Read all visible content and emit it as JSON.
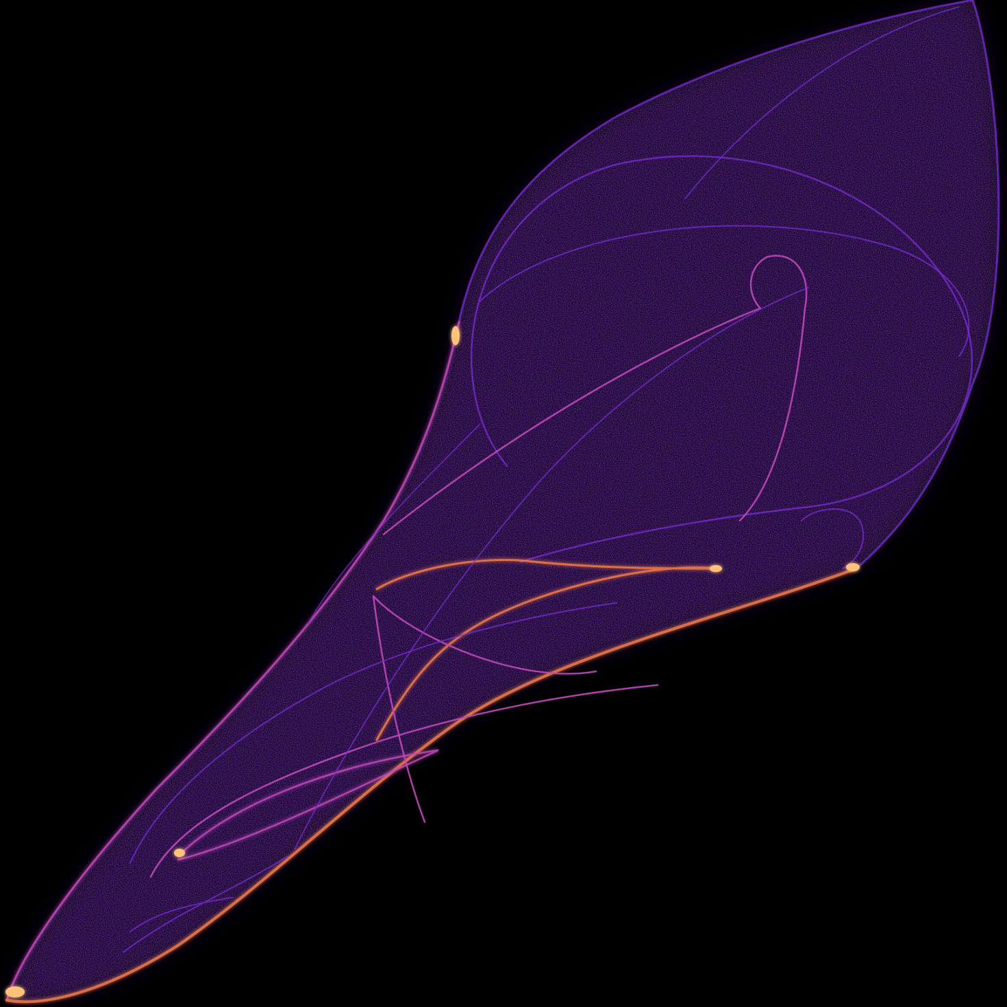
{
  "artwork": {
    "subject": "strange-attractor-density-render",
    "palette": {
      "background": "#000000",
      "shadow": "#12062e",
      "body": "#3a0f7a",
      "line": "#7a2dd6",
      "bright": "#c048b8",
      "highlight": "#f07a4a",
      "hot": "#ffc27a"
    }
  }
}
